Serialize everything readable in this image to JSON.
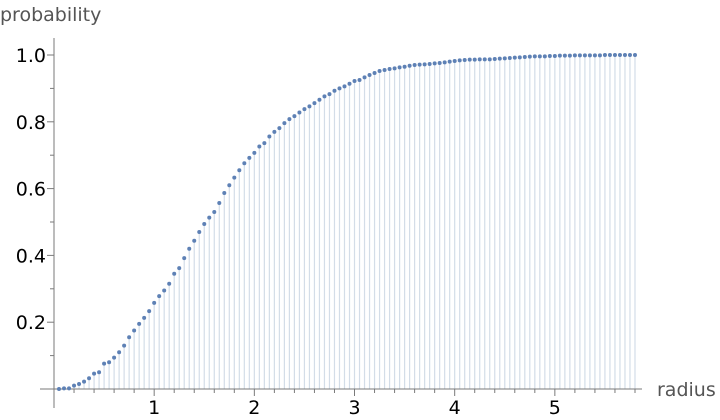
{
  "chart_data": {
    "type": "scatter",
    "style": "discrete-stem",
    "xlabel": "radius",
    "ylabel": "probability",
    "xlim": [
      0,
      5.85
    ],
    "ylim": [
      0,
      1.0
    ],
    "x_ticks": [
      1,
      2,
      3,
      4,
      5
    ],
    "x_tick_labels": [
      "1",
      "2",
      "3",
      "4",
      "5"
    ],
    "y_ticks": [
      0.2,
      0.4,
      0.6,
      0.8,
      1.0
    ],
    "y_tick_labels": [
      "0.2",
      "0.4",
      "0.6",
      "0.8",
      "1.0"
    ],
    "grid": false,
    "legend": "none",
    "colors": {
      "points": "#5e81b5",
      "stems": "#d3dde8",
      "axes": "#7a7a7a"
    },
    "series": [
      {
        "x": [
          0.05,
          0.1,
          0.15,
          0.2,
          0.25,
          0.3,
          0.35,
          0.4,
          0.45,
          0.5,
          0.55,
          0.6,
          0.65,
          0.7,
          0.75,
          0.8,
          0.85,
          0.9,
          0.95,
          1.0,
          1.05,
          1.1,
          1.15,
          1.2,
          1.25,
          1.3,
          1.35,
          1.4,
          1.45,
          1.5,
          1.55,
          1.6,
          1.65,
          1.7,
          1.75,
          1.8,
          1.85,
          1.9,
          1.95,
          2.0,
          2.05,
          2.1,
          2.15,
          2.2,
          2.25,
          2.3,
          2.35,
          2.4,
          2.45,
          2.5,
          2.55,
          2.6,
          2.65,
          2.7,
          2.75,
          2.8,
          2.85,
          2.9,
          2.95,
          3.0,
          3.05,
          3.1,
          3.15,
          3.2,
          3.25,
          3.3,
          3.35,
          3.4,
          3.45,
          3.5,
          3.55,
          3.6,
          3.65,
          3.7,
          3.75,
          3.8,
          3.85,
          3.9,
          3.95,
          4.0,
          4.05,
          4.1,
          4.15,
          4.2,
          4.25,
          4.3,
          4.35,
          4.4,
          4.45,
          4.5,
          4.55,
          4.6,
          4.65,
          4.7,
          4.75,
          4.8,
          4.85,
          4.9,
          4.95,
          5.0,
          5.05,
          5.1,
          5.15,
          5.2,
          5.25,
          5.3,
          5.35,
          5.4,
          5.45,
          5.5,
          5.55,
          5.6,
          5.65,
          5.7,
          5.75,
          5.8
        ],
        "y": [
          0.0,
          0.002,
          0.002,
          0.01,
          0.015,
          0.022,
          0.032,
          0.046,
          0.05,
          0.076,
          0.08,
          0.094,
          0.11,
          0.13,
          0.155,
          0.175,
          0.195,
          0.213,
          0.233,
          0.258,
          0.278,
          0.295,
          0.315,
          0.345,
          0.362,
          0.392,
          0.42,
          0.444,
          0.47,
          0.494,
          0.513,
          0.53,
          0.557,
          0.587,
          0.61,
          0.633,
          0.655,
          0.676,
          0.692,
          0.707,
          0.726,
          0.736,
          0.756,
          0.77,
          0.781,
          0.796,
          0.808,
          0.817,
          0.828,
          0.838,
          0.846,
          0.856,
          0.866,
          0.876,
          0.883,
          0.893,
          0.9,
          0.906,
          0.914,
          0.922,
          0.925,
          0.933,
          0.94,
          0.946,
          0.952,
          0.955,
          0.958,
          0.96,
          0.963,
          0.965,
          0.968,
          0.97,
          0.971,
          0.972,
          0.973,
          0.975,
          0.976,
          0.978,
          0.98,
          0.982,
          0.984,
          0.985,
          0.986,
          0.986,
          0.987,
          0.987,
          0.987,
          0.988,
          0.989,
          0.99,
          0.991,
          0.992,
          0.993,
          0.994,
          0.995,
          0.996,
          0.996,
          0.996,
          0.997,
          0.997,
          0.998,
          0.998,
          0.998,
          0.999,
          0.999,
          0.999,
          0.999,
          0.999,
          0.999,
          1.0,
          1.0,
          1.0,
          1.0,
          1.0,
          1.0,
          1.0
        ]
      }
    ]
  }
}
